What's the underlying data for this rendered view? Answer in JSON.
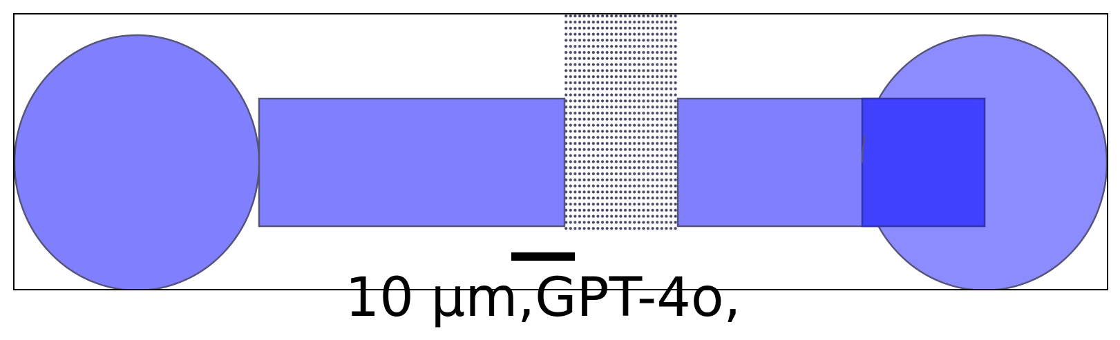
{
  "caption": "10 μm,GPT-4o,",
  "colors": {
    "pad_fill": "#8080ff",
    "pad_stroke": "#55557a",
    "overlap_fill": "#4040ff",
    "dot_fill": "#4a4a6a",
    "frame": "#000000",
    "scale_bar": "#000000"
  }
}
